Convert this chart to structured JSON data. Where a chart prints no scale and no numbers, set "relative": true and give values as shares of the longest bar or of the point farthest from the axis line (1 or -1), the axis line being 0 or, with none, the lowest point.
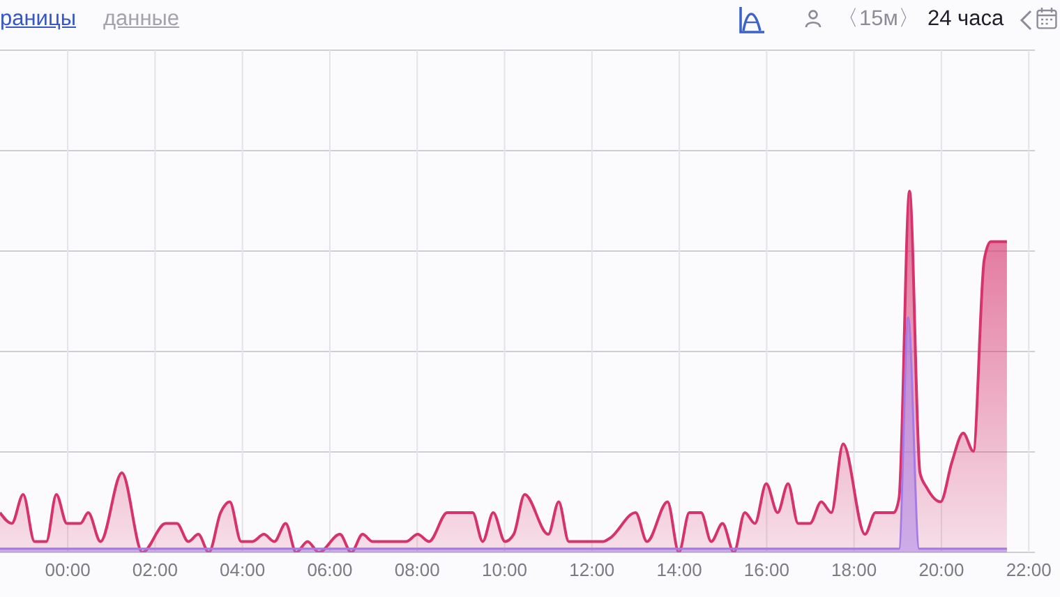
{
  "chart_data": {
    "type": "area",
    "relative": true,
    "annotations": [
      "раницы",
      "данные",
      "〈15м〉",
      "24 часа"
    ],
    "xlim": [
      -1.55,
      22.14
    ],
    "xticks": [
      {
        "value": 0,
        "label": "00:00"
      },
      {
        "value": 2,
        "label": "02:00"
      },
      {
        "value": 4,
        "label": "04:00"
      },
      {
        "value": 6,
        "label": "06:00"
      },
      {
        "value": 8,
        "label": "08:00"
      },
      {
        "value": 10,
        "label": "10:00"
      },
      {
        "value": 12,
        "label": "12:00"
      },
      {
        "value": 14,
        "label": "14:00"
      },
      {
        "value": 16,
        "label": "16:00"
      },
      {
        "value": 18,
        "label": "18:00"
      },
      {
        "value": 20,
        "label": "20:00"
      },
      {
        "value": 22,
        "label": "22:00"
      }
    ],
    "grid": true,
    "series": [
      {
        "color": "#d6336c",
        "x": [
          -1.55,
          -1.28,
          -1.02,
          -0.76,
          -0.49,
          -0.26,
          -0.02,
          0.29,
          0.47,
          0.75,
          1.24,
          1.71,
          2.24,
          2.5,
          2.76,
          2.99,
          3.23,
          3.5,
          3.71,
          3.97,
          4.23,
          4.49,
          4.73,
          4.99,
          5.23,
          5.49,
          5.75,
          6.23,
          6.49,
          6.75,
          6.98,
          7.75,
          8.01,
          8.27,
          8.69,
          9.27,
          9.5,
          9.74,
          10.01,
          10.21,
          10.46,
          11.0,
          11.24,
          11.47,
          12.26,
          12.42,
          13.0,
          13.26,
          13.73,
          13.99,
          14.23,
          14.5,
          14.73,
          14.99,
          15.25,
          15.5,
          15.73,
          15.99,
          16.25,
          16.49,
          16.72,
          16.99,
          17.25,
          17.48,
          17.75,
          18.25,
          18.49,
          18.91,
          19.03,
          19.27,
          19.51,
          19.66,
          19.98,
          20.24,
          20.5,
          20.73,
          20.98,
          21.13,
          21.5
        ],
        "values": [
          0.11,
          0.08,
          0.16,
          0.03,
          0.03,
          0.16,
          0.08,
          0.08,
          0.11,
          0.03,
          0.22,
          0,
          0.08,
          0.08,
          0.03,
          0.05,
          0,
          0.11,
          0.14,
          0.03,
          0.03,
          0.05,
          0.03,
          0.08,
          0,
          0.03,
          0,
          0.05,
          0,
          0.05,
          0.03,
          0.03,
          0.05,
          0.03,
          0.11,
          0.11,
          0.03,
          0.11,
          0.03,
          0.05,
          0.16,
          0.05,
          0.14,
          0.03,
          0.03,
          0.04,
          0.11,
          0.03,
          0.14,
          0,
          0.11,
          0.11,
          0.03,
          0.08,
          0,
          0.11,
          0.08,
          0.19,
          0.11,
          0.19,
          0.08,
          0.08,
          0.14,
          0.11,
          0.3,
          0.05,
          0.11,
          0.11,
          0.15,
          1,
          0.22,
          0.18,
          0.14,
          0.25,
          0.33,
          0.28,
          0.81,
          0.86,
          0.86
        ]
      },
      {
        "color": "#a47ae6",
        "x": [
          -1.55,
          19.03,
          19.24,
          19.49,
          21.5
        ],
        "values": [
          0.01,
          0.01,
          0.65,
          0.01,
          0.01
        ]
      }
    ]
  }
}
